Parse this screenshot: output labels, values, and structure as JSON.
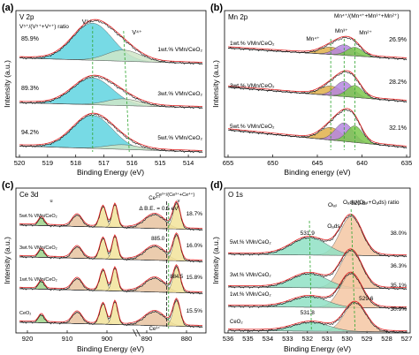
{
  "chart_data": [
    {
      "panel": "(a)",
      "type": "line",
      "element_label": "V 2p",
      "ratio_label": "V⁵⁺/(V⁵⁺+V⁴⁺) ratio",
      "xlabel": "Binding Energy (eV)",
      "ylabel": "Intensity (a.u.)",
      "xticks": [
        520,
        519,
        518,
        517,
        516,
        515,
        514
      ],
      "xlim": [
        520,
        513.5
      ],
      "xreversed": true,
      "peak_labels": [
        "V⁵⁺",
        "V⁴⁺"
      ],
      "series": [
        {
          "name": "1wt.% VMn/CeO₂",
          "ratio": "85.9%",
          "peaks": [
            {
              "label": "V⁵⁺",
              "center": 517.4,
              "height": 1.0,
              "width": 0.7
            },
            {
              "label": "V⁴⁺",
              "center": 516.3,
              "height": 0.3,
              "width": 0.6
            }
          ]
        },
        {
          "name": "3wt.% VMn/CeO₂",
          "ratio": "89.3%",
          "peaks": [
            {
              "label": "V⁵⁺",
              "center": 517.4,
              "height": 0.8,
              "width": 0.7
            },
            {
              "label": "V⁴⁺",
              "center": 516.3,
              "height": 0.2,
              "width": 0.6
            }
          ]
        },
        {
          "name": "5wt.% VMn/CeO₂",
          "ratio": "94.2%",
          "peaks": [
            {
              "label": "V⁵⁺",
              "center": 517.4,
              "height": 0.85,
              "width": 0.7
            },
            {
              "label": "V⁴⁺",
              "center": 516.3,
              "height": 0.12,
              "width": 0.6
            }
          ]
        }
      ]
    },
    {
      "panel": "(b)",
      "type": "line",
      "element_label": "Mn 2p",
      "ratio_label": "Mn⁴⁺/(Mn⁴⁺+Mn³⁺+Mn²⁺)",
      "xlabel": "Binding energy (eV)",
      "ylabel": "Intensity (a.u.)",
      "xticks": [
        655,
        650,
        645,
        640,
        635
      ],
      "xlim": [
        655,
        635
      ],
      "xreversed": true,
      "peak_labels": [
        "Mn⁴⁺",
        "Mn³⁺",
        "Mn²⁺"
      ],
      "series": [
        {
          "name": "1wt.% VMn/CeO₂",
          "ratio": "26.9%",
          "peaks": [
            {
              "label": "Mn⁴⁺",
              "center": 643.5,
              "height": 0.6,
              "width": 1.2
            },
            {
              "label": "Mn³⁺",
              "center": 642.0,
              "height": 0.85,
              "width": 1.0
            },
            {
              "label": "Mn²⁺",
              "center": 640.8,
              "height": 0.7,
              "width": 0.9
            }
          ]
        },
        {
          "name": "3wt.% VMn/CeO₂",
          "ratio": "28.2%",
          "peaks": [
            {
              "label": "Mn⁴⁺",
              "center": 643.5,
              "height": 0.6,
              "width": 1.2
            },
            {
              "label": "Mn³⁺",
              "center": 642.0,
              "height": 0.95,
              "width": 1.0
            },
            {
              "label": "Mn²⁺",
              "center": 640.8,
              "height": 0.75,
              "width": 0.9
            }
          ]
        },
        {
          "name": "5wt.% VMn/CeO₂",
          "ratio": "32.1%",
          "peaks": [
            {
              "label": "Mn⁴⁺",
              "center": 643.5,
              "height": 0.65,
              "width": 1.2
            },
            {
              "label": "Mn³⁺",
              "center": 642.0,
              "height": 0.95,
              "width": 1.0
            },
            {
              "label": "Mn²⁺",
              "center": 640.8,
              "height": 0.85,
              "width": 0.9
            }
          ]
        }
      ]
    },
    {
      "panel": "(c)",
      "type": "line",
      "element_label": "Ce 3d",
      "ratio_label": "Ce³⁺/(Ce³⁺+Ce⁴⁺)",
      "xlabel": "Binding Energy (eV)",
      "ylabel": "Intensity (a.u.)",
      "xticks": [
        920,
        910,
        900,
        890,
        880
      ],
      "xlim": [
        922,
        876
      ],
      "xreversed": true,
      "annotations": [
        "Ce⁴⁺",
        "Ce³⁺",
        "Δ B.E. = 0.5 eV",
        "885.0",
        "884.5",
        "u",
        "v"
      ],
      "series": [
        {
          "name": "5wt.% VMn/CeO₂",
          "ratio": "18.7%"
        },
        {
          "name": "3wt.% VMn/CeO₂",
          "ratio": "16.0%"
        },
        {
          "name": "1wt.% VMn/CeO₂",
          "ratio": "15.8%"
        },
        {
          "name": "CeO₂",
          "ratio": "15.5%"
        }
      ]
    },
    {
      "panel": "(d)",
      "type": "line",
      "element_label": "O 1s",
      "ratio_label": "Oₐds/(Oₗₐₜ+Oₐds) ratio",
      "xlabel": "Binding Energy (eV)",
      "ylabel": "Intensity (a.u.)",
      "xticks": [
        536,
        535,
        534,
        533,
        532,
        531,
        530,
        529,
        528,
        527
      ],
      "xlim": [
        536,
        527
      ],
      "xreversed": true,
      "peak_labels": [
        "Oₗₐₜ",
        "Oₐds"
      ],
      "peak_positions": [
        "529.8",
        "531.9",
        "531.8",
        "529.6"
      ],
      "series": [
        {
          "name": "5wt.% VMn/CeO₂",
          "ratio": "38.0%",
          "peaks": [
            {
              "label": "Oₗₐₜ",
              "center": 529.8,
              "height": 1.0,
              "width": 0.55
            },
            {
              "label": "Oₐds",
              "center": 531.9,
              "height": 0.45,
              "width": 0.9
            }
          ]
        },
        {
          "name": "3wt.% VMn/CeO₂",
          "ratio": "36.3%",
          "peaks": [
            {
              "label": "Oₗₐₜ",
              "center": 529.8,
              "height": 1.0,
              "width": 0.55
            },
            {
              "label": "Oₐds",
              "center": 531.9,
              "height": 0.38,
              "width": 0.9
            }
          ]
        },
        {
          "name": "1wt.% VMn/CeO₂",
          "ratio": "35.1%",
          "peaks": [
            {
              "label": "Oₗₐₜ",
              "center": 529.8,
              "height": 0.95,
              "width": 0.55
            },
            {
              "label": "Oₐds",
              "center": 531.9,
              "height": 0.3,
              "width": 0.9
            }
          ]
        },
        {
          "name": "CeO₂",
          "ratio": "30.9%",
          "peaks": [
            {
              "label": "Oₗₐₜ",
              "center": 529.6,
              "height": 0.9,
              "width": 0.55
            },
            {
              "label": "Oₐds",
              "center": 531.8,
              "height": 0.28,
              "width": 0.9
            }
          ]
        }
      ]
    }
  ],
  "colors": {
    "v5": "#5fd3e0",
    "v4": "#cfe6c8",
    "mn4": "#e0b04a",
    "mn3": "#b586e0",
    "mn2": "#7cc84e",
    "o_lat": "#f4c7a3",
    "o_ads": "#8fe0c4",
    "ce_a": "#9ed38a",
    "ce_b": "#f2e39a",
    "ce_c": "#e8c3a0",
    "fit": "#e02020",
    "guide": "#2fa52f",
    "guide_dark": "#111111",
    "envelope": "#111111"
  }
}
